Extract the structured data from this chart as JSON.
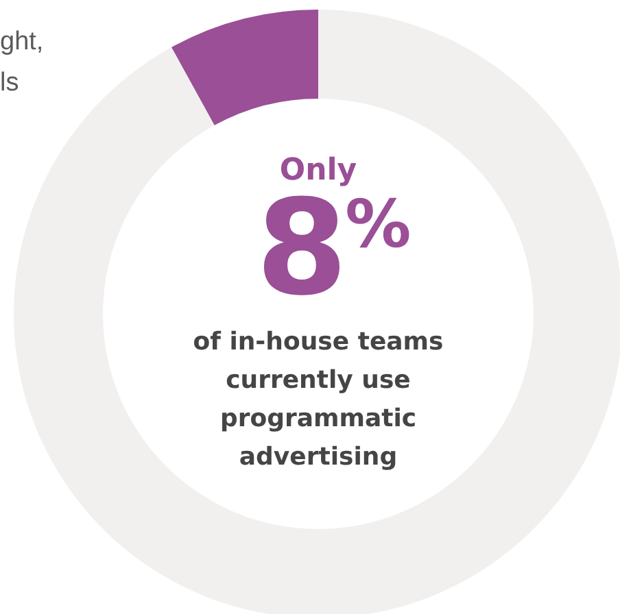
{
  "chart_data": {
    "type": "donut",
    "categories": [
      null,
      null
    ],
    "values": [
      92,
      8
    ],
    "colors": [
      "#f1f0ef",
      "#9a4f96"
    ],
    "annotations": [
      "ght,\nls",
      "Only",
      "8$^{%}$",
      "of in-house teams\ncurrently use\nprogrammatic\nadvertising"
    ]
  }
}
